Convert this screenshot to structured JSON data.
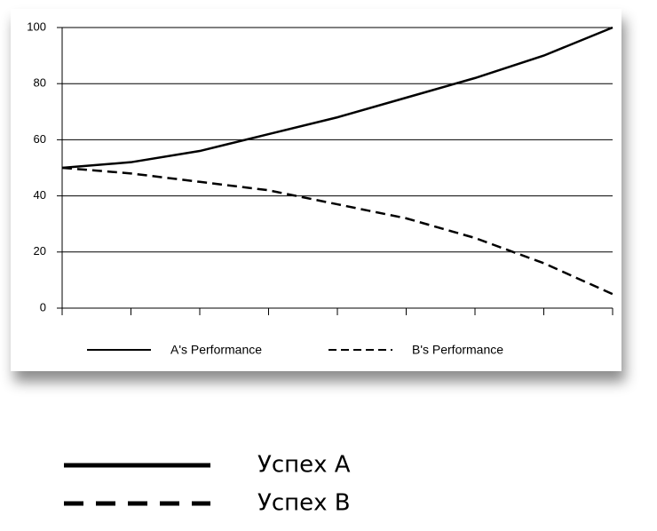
{
  "chart_data": {
    "type": "line",
    "categories": [
      null,
      null,
      null,
      null,
      null,
      null,
      null,
      null,
      null
    ],
    "series": [
      {
        "name": "A's Performance",
        "color": "#000000",
        "dashed": false,
        "values": [
          50,
          52,
          56,
          62,
          68,
          75,
          82,
          90,
          100
        ]
      },
      {
        "name": "B's Performance",
        "color": "#000000",
        "dashed": true,
        "values": [
          50,
          48,
          45,
          42,
          37,
          32,
          25,
          16,
          5
        ]
      }
    ],
    "ylim": [
      0,
      100
    ],
    "yticks": [
      0,
      20,
      40,
      60,
      80,
      100
    ],
    "grid": true,
    "legend": "bottom",
    "caption_legend": [
      "Успех A",
      "Успех B"
    ]
  }
}
